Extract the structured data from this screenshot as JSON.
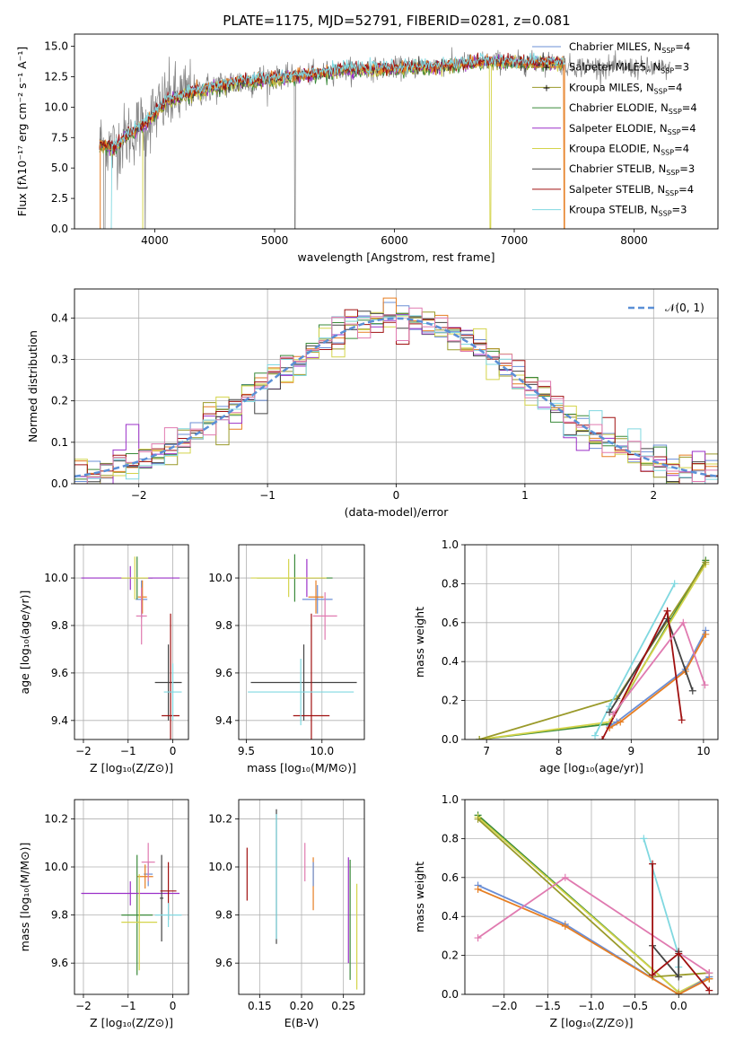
{
  "title": "PLATE=1175, MJD=52791, FIBERID=0281, z=0.081",
  "colors": {
    "Chabrier MILES": "#6b8fd6",
    "Salpeter MILES": "#e67e22",
    "Kroupa MILES": "#9a9a2a",
    "Chabrier ELODIE": "#3a8a3a",
    "Salpeter ELODIE": "#9b30c8",
    "Kroupa ELODIE": "#d4d44a",
    "Chabrier STELIB": "#444444",
    "Salpeter STELIB": "#a01010",
    "Kroupa STELIB": "#80d8e0",
    "pink": "#e07ab0",
    "data": "#808080",
    "gauss": "#5a8fd6"
  },
  "chart_data": [
    {
      "id": "spectrum",
      "type": "line",
      "xlabel": "wavelength [Angstrom, rest frame]",
      "ylabel": "Flux [fλ10⁻¹⁷ erg cm⁻² s⁻¹ A⁻¹]",
      "xlim": [
        3330,
        8700
      ],
      "ylim": [
        0,
        16
      ],
      "xticks": [
        "4000",
        "5000",
        "6000",
        "7000",
        "8000"
      ],
      "yticks": [
        "0.0",
        "2.5",
        "5.0",
        "7.5",
        "10.0",
        "12.5",
        "15.0"
      ],
      "legend_position": "right",
      "legend": [
        {
          "name": "Chabrier MILES, N",
          "nssp": "=4"
        },
        {
          "name": "Salpeter MILES, N",
          "nssp": "=3"
        },
        {
          "name": "Kroupa MILES, N",
          "nssp": "=4"
        },
        {
          "name": "Chabrier ELODIE, N",
          "nssp": "=4"
        },
        {
          "name": "Salpeter ELODIE, N",
          "nssp": "=4"
        },
        {
          "name": "Kroupa ELODIE, N",
          "nssp": "=4"
        },
        {
          "name": "Chabrier STELIB, N",
          "nssp": "=3"
        },
        {
          "name": "Salpeter STELIB, N",
          "nssp": "=4"
        },
        {
          "name": "Kroupa STELIB, N",
          "nssp": "=3"
        }
      ],
      "model_curve": {
        "x": [
          3550,
          3650,
          3750,
          3850,
          3950,
          4100,
          4300,
          4600,
          4900,
          5200,
          5600,
          6000,
          6400,
          6800,
          7100,
          7300,
          7420
        ],
        "y": [
          7.0,
          6.6,
          7.5,
          8.2,
          9.0,
          10.5,
          11.2,
          11.9,
          12.3,
          12.6,
          13.1,
          13.2,
          13.4,
          13.8,
          13.6,
          13.7,
          13.6
        ]
      },
      "data_range": [
        3540,
        8300
      ]
    },
    {
      "id": "residual-hist",
      "type": "line",
      "xlabel": "(data-model)/error",
      "ylabel": "Normed distribution",
      "xlim": [
        -2.5,
        2.5
      ],
      "ylim": [
        0,
        0.47
      ],
      "xticks": [
        "−2",
        "−1",
        "0",
        "1",
        "2"
      ],
      "yticks": [
        "0.0",
        "0.1",
        "0.2",
        "0.3",
        "0.4"
      ],
      "legend": "𝒩(0, 1)",
      "legend_position": "top-right",
      "bin_width": 0.1,
      "grid": true
    },
    {
      "id": "z-age",
      "type": "scatter",
      "xlabel": "Z [log₁₀(Z/Z⊙)]",
      "ylabel": "age  [log₁₀(age/yr)]",
      "xlim": [
        -2.2,
        0.35
      ],
      "ylim": [
        9.32,
        10.14
      ],
      "xticks": [
        "−2",
        "−1",
        "0"
      ],
      "yticks": [
        "9.4",
        "9.6",
        "9.8",
        "10.0"
      ],
      "points": [
        {
          "c": "Chabrier MILES",
          "x": -0.7,
          "y": 9.91,
          "dx": 0.13,
          "dy": 0.08
        },
        {
          "c": "Salpeter MILES",
          "x": -0.68,
          "y": 9.92,
          "dx": 0.1,
          "dy": 0.07
        },
        {
          "c": "pink",
          "x": -0.7,
          "y": 9.84,
          "dx": 0.12,
          "dy": 0.12
        },
        {
          "c": "Chabrier ELODIE",
          "x": -0.8,
          "y": 10.0,
          "dx": 0.35,
          "dy": 0.09
        },
        {
          "c": "Salpeter ELODIE",
          "x": -0.95,
          "y": 10.0,
          "dx": 1.1,
          "dy": 0.05
        },
        {
          "c": "Kroupa ELODIE",
          "x": -0.85,
          "y": 10.0,
          "dx": 0.3,
          "dy": 0.09
        },
        {
          "c": "Chabrier STELIB",
          "x": -0.1,
          "y": 9.56,
          "dx": 0.3,
          "dy": 0.16
        },
        {
          "c": "Salpeter STELIB",
          "x": -0.05,
          "y": 9.42,
          "dx": 0.2,
          "dy": 0.43
        },
        {
          "c": "Kroupa STELIB",
          "x": 0.0,
          "y": 9.52,
          "dx": 0.2,
          "dy": 0.12
        }
      ]
    },
    {
      "id": "mass-age",
      "type": "scatter",
      "xlabel": "mass [log₁₀(M/M⊙)]",
      "ylabel": "",
      "xlim": [
        9.45,
        10.28
      ],
      "ylim": [
        9.32,
        10.14
      ],
      "xticks": [
        "9.5",
        "10.0"
      ],
      "yticks": [
        "9.4",
        "9.6",
        "9.8",
        "10.0"
      ],
      "points": [
        {
          "c": "Chabrier MILES",
          "x": 9.97,
          "y": 9.91,
          "dx": 0.1,
          "dy": 0.06
        },
        {
          "c": "Salpeter MILES",
          "x": 9.96,
          "y": 9.92,
          "dx": 0.05,
          "dy": 0.07
        },
        {
          "c": "pink",
          "x": 10.02,
          "y": 9.84,
          "dx": 0.08,
          "dy": 0.1
        },
        {
          "c": "Chabrier ELODIE",
          "x": 9.82,
          "y": 10.0,
          "dx": 0.25,
          "dy": 0.1
        },
        {
          "c": "Salpeter ELODIE",
          "x": 9.9,
          "y": 10.0,
          "dx": 0.12,
          "dy": 0.08
        },
        {
          "c": "Kroupa ELODIE",
          "x": 9.78,
          "y": 10.0,
          "dx": 0.25,
          "dy": 0.08
        },
        {
          "c": "Chabrier STELIB",
          "x": 9.88,
          "y": 9.56,
          "dx": 0.35,
          "dy": 0.16
        },
        {
          "c": "Salpeter STELIB",
          "x": 9.93,
          "y": 9.42,
          "dx": 0.12,
          "dy": 0.43
        },
        {
          "c": "Kroupa STELIB",
          "x": 9.86,
          "y": 9.52,
          "dx": 0.35,
          "dy": 0.14
        }
      ]
    },
    {
      "id": "age-weight",
      "type": "line",
      "xlabel": "age  [log₁₀(age/yr)]",
      "ylabel": "mass weight",
      "xlim": [
        6.7,
        10.2
      ],
      "ylim": [
        0,
        1
      ],
      "xticks": [
        "7",
        "8",
        "9",
        "10"
      ],
      "yticks": [
        "0.0",
        "0.2",
        "0.4",
        "0.6",
        "0.8",
        "1.0"
      ],
      "series": [
        {
          "c": "Chabrier ELODIE",
          "x": [
            6.9,
            8.7,
            10.03
          ],
          "y": [
            0.0,
            0.08,
            0.92
          ]
        },
        {
          "c": "Kroupa ELODIE",
          "x": [
            6.9,
            8.7,
            10.03
          ],
          "y": [
            0.0,
            0.09,
            0.9
          ]
        },
        {
          "c": "Kroupa MILES",
          "x": [
            6.9,
            8.8,
            10.03
          ],
          "y": [
            0.0,
            0.21,
            0.91
          ]
        },
        {
          "c": "Chabrier MILES",
          "x": [
            8.7,
            8.8,
            9.75,
            10.03
          ],
          "y": [
            0.07,
            0.09,
            0.36,
            0.56
          ]
        },
        {
          "c": "Salpeter MILES",
          "x": [
            8.7,
            8.85,
            9.75,
            10.03
          ],
          "y": [
            0.06,
            0.09,
            0.35,
            0.54
          ]
        },
        {
          "c": "Kroupa STELIB",
          "x": [
            8.5,
            8.7,
            9.6
          ],
          "y": [
            0.02,
            0.17,
            0.8
          ]
        },
        {
          "c": "Chabrier STELIB",
          "x": [
            8.7,
            9.5,
            9.85
          ],
          "y": [
            0.14,
            0.62,
            0.25
          ]
        },
        {
          "c": "Salpeter STELIB",
          "x": [
            8.6,
            9.5,
            9.7
          ],
          "y": [
            0.0,
            0.66,
            0.1
          ]
        },
        {
          "c": "pink",
          "x": [
            8.75,
            9.72,
            10.02
          ],
          "y": [
            0.13,
            0.6,
            0.28
          ]
        }
      ]
    },
    {
      "id": "z-mass",
      "type": "scatter",
      "xlabel": "Z [log₁₀(Z/Z⊙)]",
      "ylabel": "mass [log₁₀(M/M⊙)]",
      "xlim": [
        -2.2,
        0.35
      ],
      "ylim": [
        9.47,
        10.28
      ],
      "xticks": [
        "−2",
        "−1",
        "0"
      ],
      "yticks": [
        "9.6",
        "9.8",
        "10.0",
        "10.2"
      ],
      "points": [
        {
          "c": "Chabrier MILES",
          "x": -0.55,
          "y": 9.97,
          "dx": 0.1,
          "dy": 0.05
        },
        {
          "c": "Salpeter MILES",
          "x": -0.62,
          "y": 9.96,
          "dx": 0.18,
          "dy": 0.05
        },
        {
          "c": "pink",
          "x": -0.55,
          "y": 10.02,
          "dx": 0.15,
          "dy": 0.08
        },
        {
          "c": "Chabrier ELODIE",
          "x": -0.8,
          "y": 9.8,
          "dx": 0.35,
          "dy": 0.25
        },
        {
          "c": "Salpeter ELODIE",
          "x": -0.95,
          "y": 9.89,
          "dx": 1.1,
          "dy": 0.05
        },
        {
          "c": "Kroupa ELODIE",
          "x": -0.75,
          "y": 9.77,
          "dx": 0.4,
          "dy": 0.2
        },
        {
          "c": "Chabrier STELIB",
          "x": -0.25,
          "y": 9.87,
          "dx": 0.04,
          "dy": 0.18
        },
        {
          "c": "Salpeter STELIB",
          "x": -0.1,
          "y": 9.9,
          "dx": 0.18,
          "dy": 0.12
        },
        {
          "c": "Kroupa STELIB",
          "x": -0.1,
          "y": 9.8,
          "dx": 0.3,
          "dy": 0.05
        }
      ]
    },
    {
      "id": "ebv-mass",
      "type": "scatter",
      "xlabel": "E(B-V)",
      "ylabel": "",
      "xlim": [
        0.125,
        0.275
      ],
      "ylim": [
        9.47,
        10.28
      ],
      "xticks": [
        "0.15",
        "0.20",
        "0.25"
      ],
      "yticks": [
        "9.6",
        "9.8",
        "10.0",
        "10.2"
      ],
      "points": [
        {
          "c": "Salpeter STELIB",
          "x": 0.135,
          "y": 9.97,
          "dy": 0.11
        },
        {
          "c": "Chabrier STELIB",
          "x": 0.17,
          "y": 9.96,
          "dy": 0.28
        },
        {
          "c": "Kroupa STELIB",
          "x": 0.17,
          "y": 9.96,
          "dy": 0.26
        },
        {
          "c": "pink",
          "x": 0.204,
          "y": 10.02,
          "dy": 0.08
        },
        {
          "c": "Salpeter MILES",
          "x": 0.214,
          "y": 9.93,
          "dy": 0.11
        },
        {
          "c": "Chabrier MILES",
          "x": 0.214,
          "y": 9.97,
          "dy": 0.05
        },
        {
          "c": "Salpeter ELODIE",
          "x": 0.256,
          "y": 9.82,
          "dy": 0.22
        },
        {
          "c": "Chabrier ELODIE",
          "x": 0.258,
          "y": 9.78,
          "dy": 0.25
        },
        {
          "c": "Kroupa ELODIE",
          "x": 0.266,
          "y": 9.71,
          "dy": 0.22
        }
      ]
    },
    {
      "id": "z-weight",
      "type": "line",
      "xlabel": "Z [log₁₀(Z/Z⊙)]",
      "ylabel": "mass weight",
      "xlim": [
        -2.45,
        0.45
      ],
      "ylim": [
        0,
        1
      ],
      "xticks": [
        "−2.0",
        "−1.5",
        "−1.0",
        "−0.5",
        "0.0"
      ],
      "yticks": [
        "0.0",
        "0.2",
        "0.4",
        "0.6",
        "0.8",
        "1.0"
      ],
      "series": [
        {
          "c": "Chabrier ELODIE",
          "x": [
            -2.3,
            0.0,
            0.35
          ],
          "y": [
            0.92,
            0.01,
            0.08
          ]
        },
        {
          "c": "Kroupa ELODIE",
          "x": [
            -2.3,
            0.0,
            0.35
          ],
          "y": [
            0.91,
            0.01,
            0.09
          ]
        },
        {
          "c": "Kroupa MILES",
          "x": [
            -2.3,
            -0.3,
            0.35
          ],
          "y": [
            0.9,
            0.09,
            0.11
          ]
        },
        {
          "c": "Chabrier MILES",
          "x": [
            -2.3,
            -1.3,
            0.0,
            0.35
          ],
          "y": [
            0.56,
            0.36,
            0.0,
            0.09
          ]
        },
        {
          "c": "Salpeter MILES",
          "x": [
            -2.3,
            -1.3,
            0.0,
            0.35
          ],
          "y": [
            0.54,
            0.35,
            0.0,
            0.08
          ]
        },
        {
          "c": "pink",
          "x": [
            -2.3,
            -1.3,
            0.35
          ],
          "y": [
            0.29,
            0.6,
            0.11
          ]
        },
        {
          "c": "Kroupa STELIB",
          "x": [
            -0.4,
            0.0,
            0.0
          ],
          "y": [
            0.8,
            0.2,
            0.14
          ]
        },
        {
          "c": "Chabrier STELIB",
          "x": [
            -0.3,
            0.0,
            0.0
          ],
          "y": [
            0.25,
            0.09,
            0.22
          ]
        },
        {
          "c": "Salpeter STELIB",
          "x": [
            -0.3,
            -0.3,
            0.0,
            0.35
          ],
          "y": [
            0.67,
            0.1,
            0.21,
            0.02
          ]
        }
      ]
    }
  ]
}
